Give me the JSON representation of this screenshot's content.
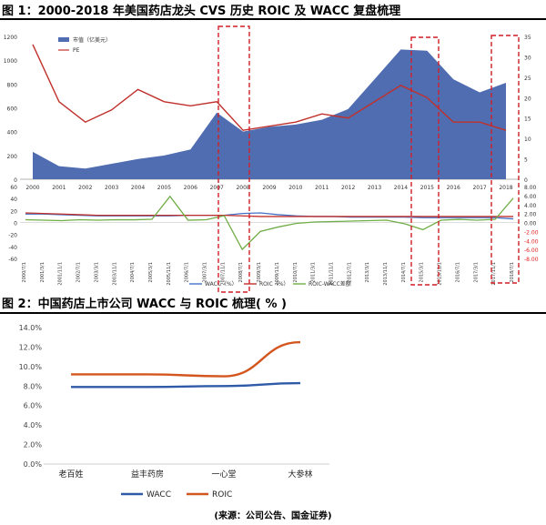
{
  "figure1": {
    "title": "图 1：2000-2018 年美国药店龙头 CVS 历史 ROIC 及 WACC 复盘梳理",
    "top_chart": {
      "type": "area",
      "years": [
        "2000",
        "2001",
        "2002",
        "2003",
        "2004",
        "2005",
        "2006",
        "2007",
        "2008",
        "2009",
        "2010",
        "2011",
        "2012",
        "2013",
        "2014",
        "2015",
        "2016",
        "2017",
        "2018"
      ],
      "series": [
        {
          "name": "市值（亿美元）",
          "axis": "left",
          "type": "area",
          "color": "#4f6db0",
          "values": [
            230,
            110,
            90,
            130,
            170,
            200,
            250,
            560,
            400,
            440,
            460,
            500,
            590,
            840,
            1090,
            1080,
            840,
            730,
            810
          ]
        },
        {
          "name": "PE",
          "axis": "right",
          "type": "line",
          "color": "#c0302c",
          "values": [
            33,
            19,
            14,
            17,
            22,
            19,
            18,
            19,
            12,
            13,
            14,
            16,
            15,
            19,
            23,
            20,
            14,
            14,
            12
          ]
        }
      ],
      "ylim_left": [
        0,
        1200
      ],
      "yticks_left": [
        "0",
        "200",
        "400",
        "600",
        "800",
        "1000",
        "1200"
      ],
      "ylim_right": [
        0,
        35
      ],
      "yticks_right": [
        "0",
        "5",
        "10",
        "15",
        "20",
        "25",
        "30",
        "35"
      ],
      "highlight_years": [
        "2007-2008",
        "2014-2015",
        "2017-2018"
      ]
    },
    "bottom_chart": {
      "type": "line",
      "x_ticks": [
        "2000/7/1",
        "2001/3/1",
        "2001/11/1",
        "2002/7/1",
        "2003/3/1",
        "2003/11/1",
        "2004/7/1",
        "2005/3/1",
        "2005/11/1",
        "2006/7/1",
        "2007/3/1",
        "2007/11/1",
        "2008/7/1",
        "2009/3/1",
        "2009/11/1",
        "2010/7/1",
        "2011/3/1",
        "2011/11/1",
        "2012/7/1",
        "2013/3/1",
        "2013/11/1",
        "2014/7/1",
        "2015/3/1",
        "2015/11/1",
        "2016/7/1",
        "2017/3/1",
        "2017/11/1",
        "2018/7/1"
      ],
      "series": [
        {
          "name": "WACC（%）",
          "axis": "left",
          "color": "#4472c4",
          "values": [
            14,
            14,
            13,
            12,
            11,
            11,
            11,
            11,
            11,
            12,
            12,
            12,
            15,
            16,
            13,
            11,
            10,
            10,
            9,
            9,
            9,
            9,
            8,
            8,
            8,
            8,
            8,
            6
          ]
        },
        {
          "name": "ROIC（%）",
          "axis": "left",
          "color": "#c0302c",
          "values": [
            16,
            15,
            14,
            13,
            12,
            12,
            12,
            12,
            12,
            12,
            12,
            12,
            11,
            10,
            10,
            10,
            10,
            10,
            10,
            10,
            10,
            10,
            10,
            10,
            10,
            10,
            10,
            10
          ]
        },
        {
          "name": "ROIC-WACC差额",
          "axis": "right",
          "color": "#70ad47",
          "values": [
            0.6,
            0.5,
            0.4,
            0.6,
            0.5,
            0.6,
            0.6,
            0.7,
            5.8,
            0.5,
            0.6,
            1.5,
            -6.0,
            -2.0,
            -1.0,
            -0.2,
            0.1,
            0.2,
            0.3,
            0.4,
            0.5,
            -0.3,
            -1.6,
            0.5,
            0.7,
            0.5,
            0.7,
            5.4
          ]
        }
      ],
      "ylim_left": [
        -60,
        60
      ],
      "yticks_left": [
        "-60",
        "-40",
        "-20",
        "0",
        "20",
        "40",
        "60"
      ],
      "ylim_right": [
        -8,
        8
      ],
      "yticks_right": [
        "-8.00",
        "-6.00",
        "-4.00",
        "-2.00",
        "0.00",
        "2.00",
        "4.00",
        "6.00",
        "8.00"
      ],
      "legend": [
        "WACC（%）",
        "ROIC（%）",
        "ROIC-WACC差额"
      ]
    }
  },
  "figure2": {
    "title": "图 2：中国药店上市公司 WACC 与 ROIC 梳理( % )",
    "chart_data": {
      "type": "line",
      "categories": [
        "老百姓",
        "益丰药房",
        "一心堂",
        "大参林"
      ],
      "series": [
        {
          "name": "WACC",
          "color": "#2e5aa8",
          "values": [
            7.9,
            7.9,
            8.0,
            8.3
          ]
        },
        {
          "name": "ROIC",
          "color": "#d4561f",
          "values": [
            9.2,
            9.2,
            9.0,
            12.5
          ]
        }
      ],
      "ylim": [
        0,
        14
      ],
      "yticks": [
        "0.0%",
        "2.0%",
        "4.0%",
        "6.0%",
        "8.0%",
        "10.0%",
        "12.0%",
        "14.0%"
      ]
    }
  },
  "source": "(来源：公司公告、国金证券)"
}
